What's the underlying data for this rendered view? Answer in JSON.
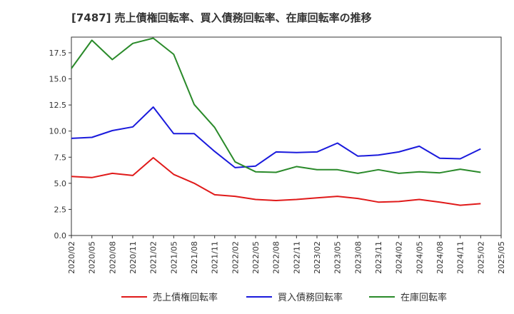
{
  "chart_data": {
    "type": "line",
    "title": "[7487]  売上債権回転率、買入債務回転率、在庫回転率の推移",
    "xlabel": "",
    "ylabel": "",
    "ylim": [
      0,
      19
    ],
    "yticks": [
      0.0,
      2.5,
      5.0,
      7.5,
      10.0,
      12.5,
      15.0,
      17.5
    ],
    "ytick_labels": [
      "0.0",
      "2.5",
      "5.0",
      "7.5",
      "10.0",
      "12.5",
      "15.0",
      "17.5"
    ],
    "grid": false,
    "legend_position": "bottom",
    "x": [
      "2020/02",
      "2020/05",
      "2020/08",
      "2020/11",
      "2021/02",
      "2021/05",
      "2021/08",
      "2021/11",
      "2022/02",
      "2022/05",
      "2022/08",
      "2022/11",
      "2023/02",
      "2023/05",
      "2023/08",
      "2023/11",
      "2024/02",
      "2024/05",
      "2024/08",
      "2024/11",
      "2025/02",
      "2025/05"
    ],
    "series": [
      {
        "name": "売上債権回転率",
        "color": "#e01a1a",
        "values": [
          5.65,
          5.55,
          5.95,
          5.75,
          7.45,
          5.85,
          5.0,
          3.9,
          3.75,
          3.45,
          3.35,
          3.45,
          3.6,
          3.75,
          3.55,
          3.2,
          3.25,
          3.45,
          3.2,
          2.9,
          3.05,
          null
        ]
      },
      {
        "name": "買入債務回転率",
        "color": "#1a1adc",
        "values": [
          9.3,
          9.4,
          10.05,
          10.4,
          12.3,
          9.75,
          9.75,
          8.05,
          6.5,
          6.65,
          8.0,
          7.95,
          8.0,
          8.85,
          7.6,
          7.7,
          8.0,
          8.55,
          7.4,
          7.35,
          8.3,
          null
        ]
      },
      {
        "name": "在庫回転率",
        "color": "#2a8a2a",
        "values": [
          16.0,
          18.7,
          16.85,
          18.4,
          18.9,
          17.35,
          12.55,
          10.35,
          7.05,
          6.1,
          6.05,
          6.6,
          6.3,
          6.3,
          5.95,
          6.3,
          5.95,
          6.1,
          6.0,
          6.35,
          6.05,
          null
        ]
      }
    ]
  }
}
